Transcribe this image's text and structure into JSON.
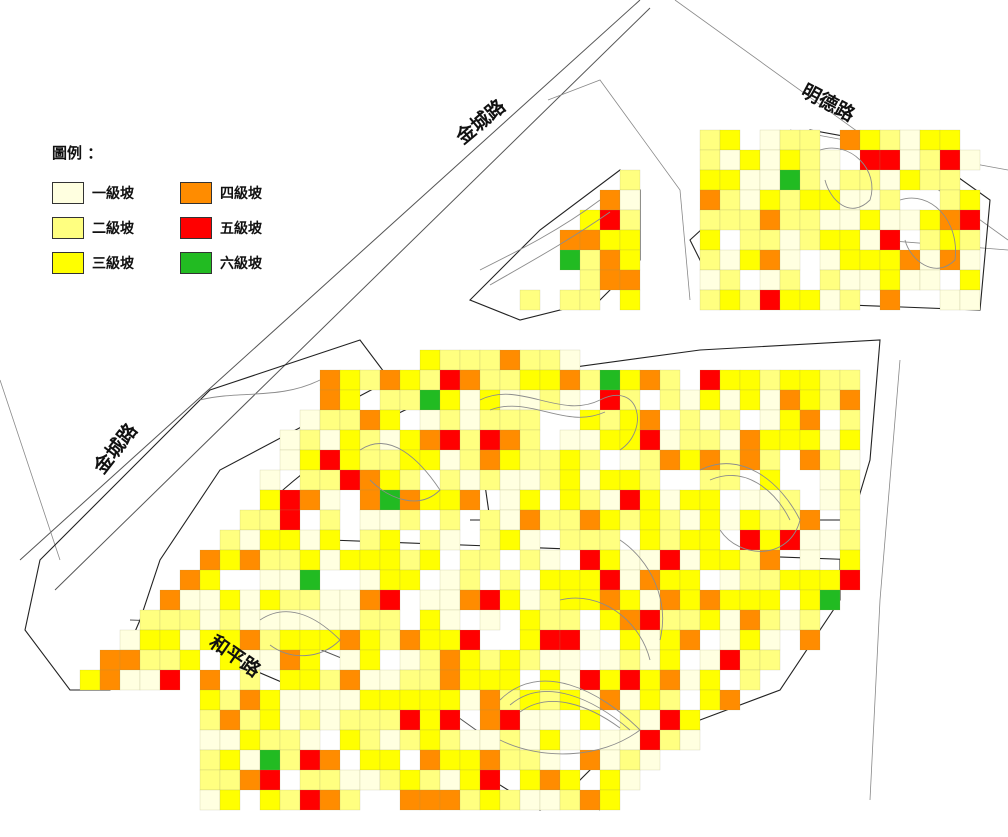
{
  "legend": {
    "title": "圖例 ：",
    "items": [
      {
        "label": "一級坡",
        "color": "#ffffe0"
      },
      {
        "label": "二級坡",
        "color": "#ffff80"
      },
      {
        "label": "三級坡",
        "color": "#ffff00"
      },
      {
        "label": "四級坡",
        "color": "#ff8c00"
      },
      {
        "label": "五級坡",
        "color": "#ff0000"
      },
      {
        "label": "六級坡",
        "color": "#22bb22"
      }
    ]
  },
  "roads": {
    "jincheng_top": "金城路",
    "jincheng_left": "金城路",
    "mingde": "明德路",
    "heping": "和平路"
  }
}
